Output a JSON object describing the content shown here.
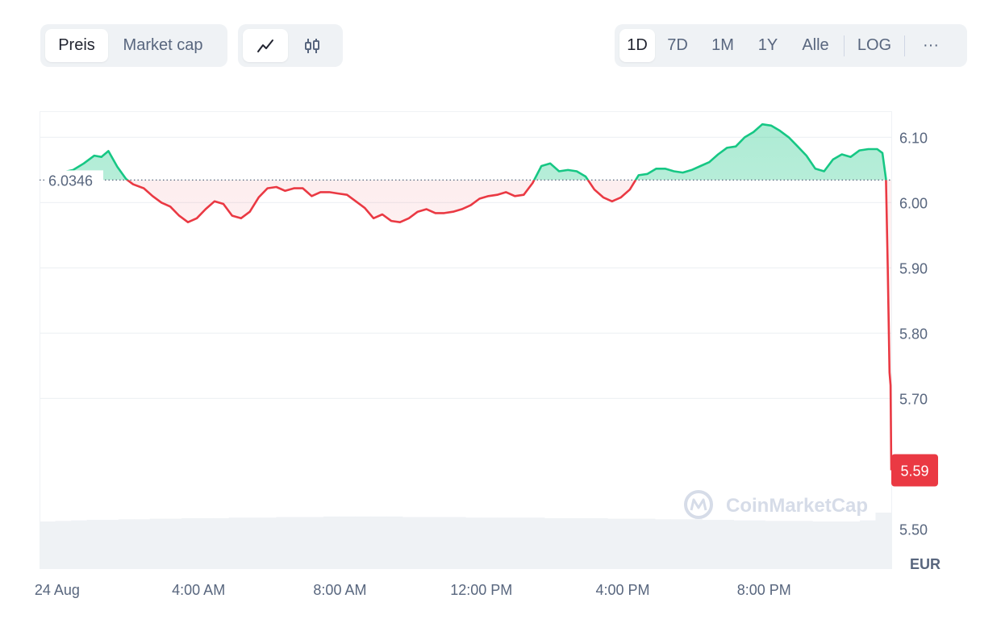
{
  "metric_tabs": [
    {
      "label": "Preis",
      "active": true
    },
    {
      "label": "Market cap",
      "active": false
    }
  ],
  "chart_type_buttons": [
    {
      "icon": "line-chart-icon",
      "active": true
    },
    {
      "icon": "candlestick-chart-icon",
      "active": false
    }
  ],
  "range_tabs": [
    {
      "label": "1D",
      "active": true
    },
    {
      "label": "7D",
      "active": false
    },
    {
      "label": "1M",
      "active": false
    },
    {
      "label": "1Y",
      "active": false
    },
    {
      "label": "Alle",
      "active": false
    }
  ],
  "log_label": "LOG",
  "more_label": "···",
  "watermark": "CoinMarketCap",
  "colors": {
    "up": "#16c784",
    "down": "#ea3943",
    "reference": "#58667e"
  },
  "chart_data": {
    "type": "area",
    "currency": "EUR",
    "reference_value": 6.0346,
    "reference_label": "6.0346",
    "current_value": 5.59,
    "current_label": "5.59",
    "ylim": [
      5.44,
      6.14
    ],
    "y_ticks": [
      {
        "value": 6.1,
        "label": "6.10"
      },
      {
        "value": 6.0,
        "label": "6.00"
      },
      {
        "value": 5.9,
        "label": "5.90"
      },
      {
        "value": 5.8,
        "label": "5.80"
      },
      {
        "value": 5.7,
        "label": "5.70"
      },
      {
        "value": 5.5,
        "label": "5.50"
      }
    ],
    "x_range_hours": [
      -0.5,
      23.6
    ],
    "x_ticks": [
      {
        "hour": 0,
        "label": "24 Aug"
      },
      {
        "hour": 4,
        "label": "4:00 AM"
      },
      {
        "hour": 8,
        "label": "8:00 AM"
      },
      {
        "hour": 12,
        "label": "12:00 PM"
      },
      {
        "hour": 16,
        "label": "4:00 PM"
      },
      {
        "hour": 20,
        "label": "8:00 PM"
      }
    ],
    "series": [
      {
        "points": [
          [
            -0.05,
            6.036
          ],
          [
            0.2,
            6.047
          ],
          [
            0.45,
            6.05
          ],
          [
            0.75,
            6.06
          ],
          [
            1.05,
            6.072
          ],
          [
            1.25,
            6.07
          ],
          [
            1.45,
            6.079
          ],
          [
            1.7,
            6.055
          ],
          [
            1.95,
            6.036
          ],
          [
            2.15,
            6.028
          ],
          [
            2.45,
            6.022
          ],
          [
            2.7,
            6.01
          ],
          [
            2.95,
            6.0
          ],
          [
            3.2,
            5.994
          ],
          [
            3.45,
            5.98
          ],
          [
            3.7,
            5.97
          ],
          [
            3.95,
            5.976
          ],
          [
            4.2,
            5.99
          ],
          [
            4.45,
            6.002
          ],
          [
            4.7,
            5.998
          ],
          [
            4.95,
            5.98
          ],
          [
            5.2,
            5.976
          ],
          [
            5.45,
            5.986
          ],
          [
            5.7,
            6.008
          ],
          [
            5.95,
            6.022
          ],
          [
            6.2,
            6.024
          ],
          [
            6.45,
            6.018
          ],
          [
            6.7,
            6.022
          ],
          [
            6.95,
            6.022
          ],
          [
            7.2,
            6.01
          ],
          [
            7.45,
            6.016
          ],
          [
            7.7,
            6.016
          ],
          [
            7.95,
            6.014
          ],
          [
            8.2,
            6.012
          ],
          [
            8.45,
            6.002
          ],
          [
            8.7,
            5.992
          ],
          [
            8.95,
            5.976
          ],
          [
            9.2,
            5.982
          ],
          [
            9.45,
            5.972
          ],
          [
            9.7,
            5.97
          ],
          [
            9.95,
            5.976
          ],
          [
            10.2,
            5.986
          ],
          [
            10.45,
            5.99
          ],
          [
            10.7,
            5.984
          ],
          [
            10.95,
            5.984
          ],
          [
            11.2,
            5.986
          ],
          [
            11.45,
            5.99
          ],
          [
            11.7,
            5.996
          ],
          [
            11.95,
            6.006
          ],
          [
            12.2,
            6.01
          ],
          [
            12.45,
            6.012
          ],
          [
            12.7,
            6.016
          ],
          [
            12.95,
            6.01
          ],
          [
            13.2,
            6.012
          ],
          [
            13.45,
            6.03
          ],
          [
            13.7,
            6.056
          ],
          [
            13.95,
            6.06
          ],
          [
            14.2,
            6.048
          ],
          [
            14.45,
            6.05
          ],
          [
            14.7,
            6.048
          ],
          [
            14.95,
            6.04
          ],
          [
            15.2,
            6.02
          ],
          [
            15.45,
            6.008
          ],
          [
            15.7,
            6.002
          ],
          [
            15.95,
            6.008
          ],
          [
            16.2,
            6.02
          ],
          [
            16.45,
            6.042
          ],
          [
            16.7,
            6.044
          ],
          [
            16.95,
            6.052
          ],
          [
            17.2,
            6.052
          ],
          [
            17.45,
            6.048
          ],
          [
            17.7,
            6.046
          ],
          [
            17.95,
            6.05
          ],
          [
            18.2,
            6.056
          ],
          [
            18.45,
            6.062
          ],
          [
            18.7,
            6.074
          ],
          [
            18.95,
            6.084
          ],
          [
            19.2,
            6.086
          ],
          [
            19.45,
            6.1
          ],
          [
            19.7,
            6.108
          ],
          [
            19.95,
            6.12
          ],
          [
            20.2,
            6.118
          ],
          [
            20.45,
            6.11
          ],
          [
            20.7,
            6.1
          ],
          [
            20.95,
            6.086
          ],
          [
            21.2,
            6.072
          ],
          [
            21.45,
            6.052
          ],
          [
            21.7,
            6.048
          ],
          [
            21.95,
            6.066
          ],
          [
            22.2,
            6.074
          ],
          [
            22.45,
            6.07
          ],
          [
            22.7,
            6.08
          ],
          [
            22.95,
            6.082
          ],
          [
            23.2,
            6.082
          ],
          [
            23.35,
            6.076
          ],
          [
            23.45,
            6.036
          ],
          [
            23.5,
            5.9
          ],
          [
            23.55,
            5.74
          ],
          [
            23.58,
            5.72
          ],
          [
            23.6,
            5.59
          ]
        ]
      }
    ],
    "volume": {
      "relative_levels": [
        0.84,
        0.85,
        0.86,
        0.87,
        0.87,
        0.88,
        0.88,
        0.89,
        0.89,
        0.9,
        0.9,
        0.9,
        0.91,
        0.91,
        0.91,
        0.92,
        0.92,
        0.92,
        0.93,
        0.93,
        0.93,
        0.93,
        0.93,
        0.92,
        0.92,
        0.92,
        0.92,
        0.91,
        0.91,
        0.91,
        0.91,
        0.91,
        0.9,
        0.9,
        0.9,
        0.9,
        0.89,
        0.89,
        0.89,
        0.88,
        0.88,
        0.88,
        0.87,
        0.87,
        0.86,
        0.86,
        0.85,
        0.85,
        0.85,
        0.84,
        0.84,
        0.84,
        0.86,
        1.0
      ]
    }
  }
}
